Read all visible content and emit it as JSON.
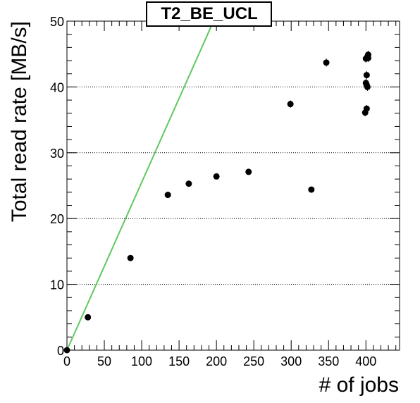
{
  "chart_data": {
    "type": "scatter",
    "title": "T2_BE_UCL",
    "xlabel": "# of jobs",
    "ylabel": "Total read rate [MB/s]",
    "xlim": [
      0,
      445
    ],
    "ylim": [
      0,
      50
    ],
    "x_ticks": [
      0,
      50,
      100,
      150,
      200,
      250,
      300,
      350,
      400
    ],
    "y_ticks": [
      0,
      10,
      20,
      30,
      40,
      50
    ],
    "grid": "horizontal dotted",
    "colors": {
      "points": "#000000",
      "reference_line": "#5ec95e",
      "grid": "#000000"
    },
    "series": [
      {
        "x": [
          0,
          28,
          85,
          135,
          163,
          200,
          243,
          299,
          327,
          347,
          399,
          400,
          400,
          401,
          401,
          401,
          402,
          402,
          403,
          403
        ],
        "y": [
          0,
          5.0,
          14.0,
          23.6,
          25.3,
          26.4,
          27.1,
          37.4,
          24.4,
          43.7,
          36.1,
          40.6,
          44.3,
          40.3,
          41.8,
          36.7,
          40.0,
          44.6,
          44.9,
          44.4
        ],
        "yerr": [
          0.15,
          0.3,
          0.3,
          0.35,
          0.35,
          0.35,
          0.35,
          0.55,
          0.35,
          0.6,
          0.55,
          0.6,
          0.6,
          0.6,
          0.6,
          0.55,
          0.6,
          0.6,
          0.6,
          0.6
        ]
      }
    ],
    "reference_line": {
      "x": [
        0,
        200
      ],
      "y": [
        0,
        51
      ]
    }
  }
}
